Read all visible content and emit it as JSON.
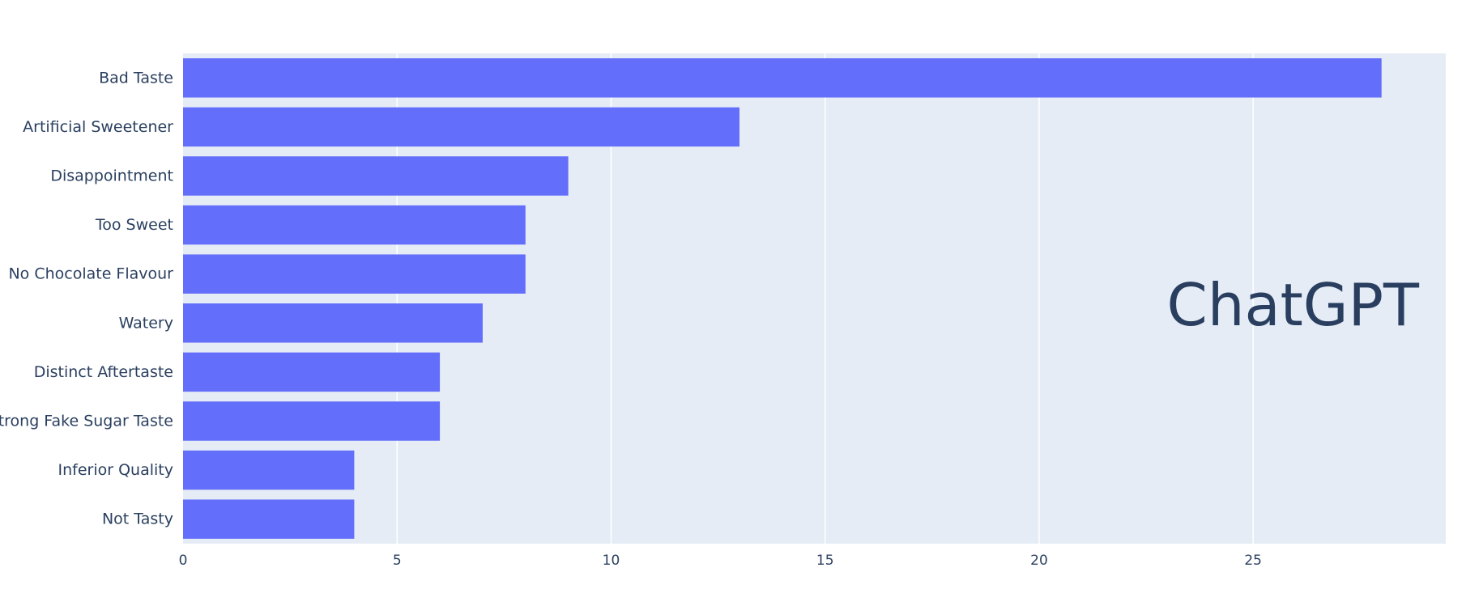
{
  "chart_data": {
    "type": "bar",
    "orientation": "horizontal",
    "categories": [
      "Bad Taste",
      "Artificial Sweetener",
      "Disappointment",
      "Too Sweet",
      "No Chocolate Flavour",
      "Watery",
      "Distinct Aftertaste",
      "Strong Fake Sugar Taste",
      "Inferior Quality",
      "Not Tasty"
    ],
    "values": [
      28,
      13,
      9,
      8,
      8,
      7,
      6,
      6,
      4,
      4
    ],
    "xlim": [
      0,
      29.5
    ],
    "xticks": [
      0,
      5,
      10,
      15,
      20,
      25
    ],
    "grid": true,
    "annotation": "ChatGPT",
    "title": "",
    "xlabel": "",
    "ylabel": ""
  },
  "colors": {
    "bar": "#636efa",
    "plot_bg": "#e5ecf6",
    "grid": "#ffffff",
    "text": "#2a3f5f"
  }
}
